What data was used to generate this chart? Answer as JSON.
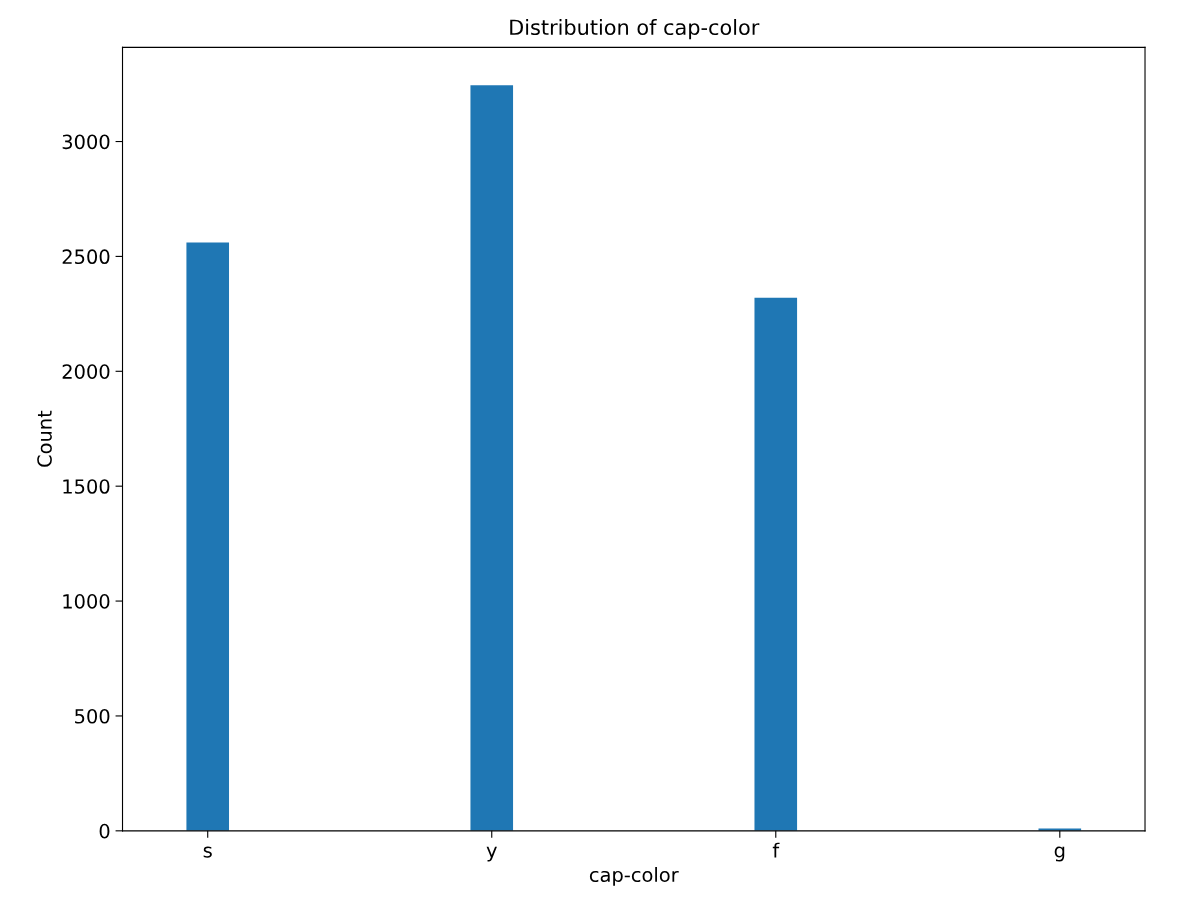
{
  "chart_data": {
    "type": "bar",
    "title": "Distribution of cap-color",
    "xlabel": "cap-color",
    "ylabel": "Count",
    "categories": [
      "s",
      "y",
      "f",
      "g"
    ],
    "values": [
      2560,
      3245,
      2320,
      10
    ],
    "color": "#1f77b4",
    "ylim": [
      0,
      3410
    ],
    "yticks": [
      0,
      500,
      1000,
      1500,
      2000,
      2500,
      3000
    ]
  }
}
